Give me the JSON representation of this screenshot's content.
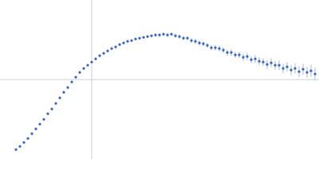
{
  "chart_data": {
    "type": "scatter",
    "color": "#3a66c0",
    "error_color": "#a9bde6",
    "xlim": [
      0,
      400
    ],
    "ylim": [
      0,
      200
    ],
    "reference_lines": {
      "x": 115,
      "y": 100
    },
    "x": [
      20,
      25,
      30,
      35,
      40,
      45,
      50,
      55,
      60,
      65,
      70,
      75,
      80,
      85,
      90,
      95,
      100,
      105,
      110,
      115,
      120,
      125,
      130,
      135,
      140,
      145,
      150,
      155,
      160,
      165,
      170,
      175,
      180,
      185,
      190,
      195,
      200,
      205,
      210,
      215,
      220,
      225,
      230,
      235,
      240,
      245,
      250,
      255,
      260,
      265,
      270,
      275,
      280,
      285,
      290,
      295,
      300,
      305,
      310,
      315,
      320,
      325,
      330,
      335,
      340,
      345,
      350,
      355,
      360,
      365,
      370,
      375,
      380,
      385,
      390,
      395
    ],
    "values": [
      12,
      16,
      21,
      26,
      32,
      38,
      44,
      50,
      57,
      63,
      70,
      77,
      84,
      90,
      97,
      103,
      109,
      114,
      118,
      122,
      126,
      130,
      133,
      136,
      139,
      141,
      144,
      146,
      148,
      149,
      151,
      152,
      153,
      154,
      155,
      156,
      156,
      157,
      156,
      157,
      155,
      154,
      152,
      152,
      149,
      148,
      146,
      145,
      143,
      140,
      140,
      139,
      137,
      134,
      134,
      131,
      131,
      128,
      129,
      125,
      126,
      123,
      122,
      119,
      121,
      118,
      118,
      114,
      116,
      112,
      114,
      110,
      113,
      109,
      111,
      107
    ],
    "errors": [
      0.5,
      0.5,
      0.5,
      0.5,
      0.5,
      0.5,
      0.5,
      0.5,
      0.5,
      0.5,
      0.5,
      0.5,
      0.5,
      0.5,
      0.5,
      0.5,
      0.8,
      0.8,
      0.8,
      0.8,
      1,
      1,
      1,
      1,
      1,
      1,
      1.2,
      1.2,
      1.2,
      1.2,
      1.5,
      1.5,
      1.5,
      1.5,
      1.5,
      2,
      2,
      2,
      2,
      2,
      2.5,
      2.5,
      2.5,
      2.5,
      3,
      3,
      3,
      3,
      3,
      3.5,
      3.5,
      3.5,
      3.5,
      4,
      4,
      4,
      4,
      4.5,
      4.5,
      4.5,
      5,
      5,
      5,
      5.5,
      5.5,
      5.5,
      6,
      6,
      6,
      6.5,
      6.5,
      7,
      7,
      7,
      7.5,
      8
    ]
  }
}
